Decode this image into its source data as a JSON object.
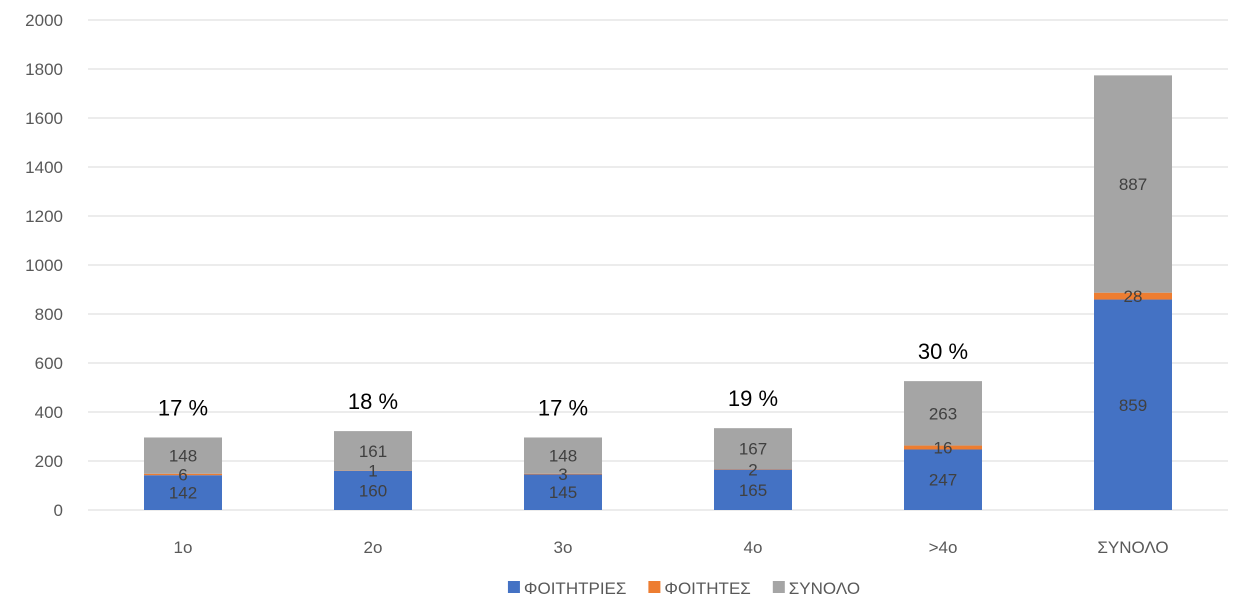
{
  "chart_data": {
    "type": "bar",
    "stacked": true,
    "categories": [
      "1ο",
      "2ο",
      "3ο",
      "4ο",
      ">4ο",
      "ΣΥΝΟΛΟ"
    ],
    "series": [
      {
        "name": "ΦΟΙΤΗΤΡΙΕΣ",
        "values": [
          142,
          160,
          145,
          165,
          247,
          859
        ],
        "color": "#4472C4"
      },
      {
        "name": "ΦΟΙΤΗΤΕΣ",
        "values": [
          6,
          1,
          3,
          2,
          16,
          28
        ],
        "color": "#ED7D31"
      },
      {
        "name": "ΣΥΝΟΛΟ",
        "values": [
          148,
          161,
          148,
          167,
          263,
          887
        ],
        "color": "#A5A5A5"
      }
    ],
    "annotations": [
      "17 %",
      "18 %",
      "17 %",
      "19 %",
      "30 %",
      ""
    ],
    "ylim": [
      0,
      2000
    ],
    "ytick_step": 200,
    "grid": true,
    "legend": "bottom",
    "title": "",
    "xlabel": "",
    "ylabel": ""
  }
}
